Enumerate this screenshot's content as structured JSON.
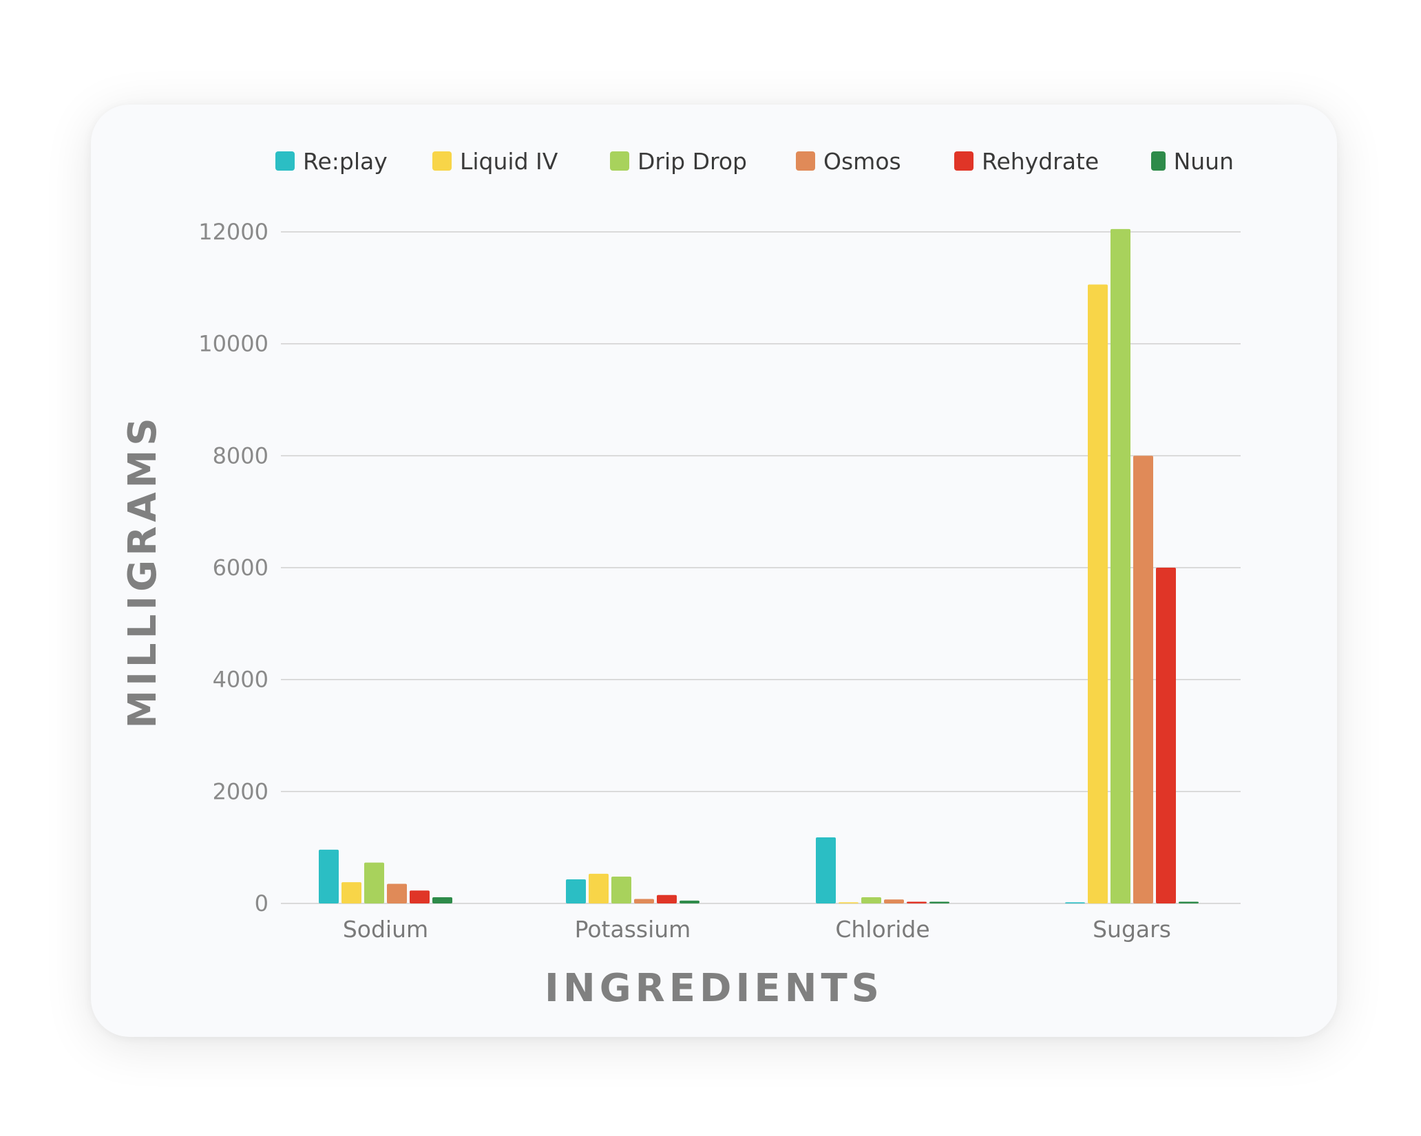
{
  "chart_data": {
    "type": "bar",
    "xlabel": "INGREDIENTS",
    "ylabel": "MILLIGRAMS",
    "ylim": [
      0,
      12000
    ],
    "yticks": [
      0,
      2000,
      4000,
      6000,
      8000,
      10000,
      12000
    ],
    "grid": true,
    "legend_position": "top",
    "categories": [
      "Sodium",
      "Potassium",
      "Chloride",
      "Sugars"
    ],
    "series": [
      {
        "name": "Re:play",
        "color": "#2bbec4",
        "values": [
          960,
          430,
          1180,
          20
        ]
      },
      {
        "name": "Liquid IV",
        "color": "#f8d548",
        "values": [
          380,
          530,
          20,
          11060
        ]
      },
      {
        "name": "Drip Drop",
        "color": "#a8d25c",
        "values": [
          730,
          480,
          110,
          12050
        ]
      },
      {
        "name": "Osmos",
        "color": "#e08a58",
        "values": [
          350,
          80,
          70,
          8000
        ]
      },
      {
        "name": "Rehydrate",
        "color": "#e03527",
        "values": [
          230,
          150,
          30,
          6000
        ]
      },
      {
        "name": "Nuun",
        "color": "#2e8b4a",
        "values": [
          110,
          50,
          30,
          30
        ]
      }
    ]
  }
}
